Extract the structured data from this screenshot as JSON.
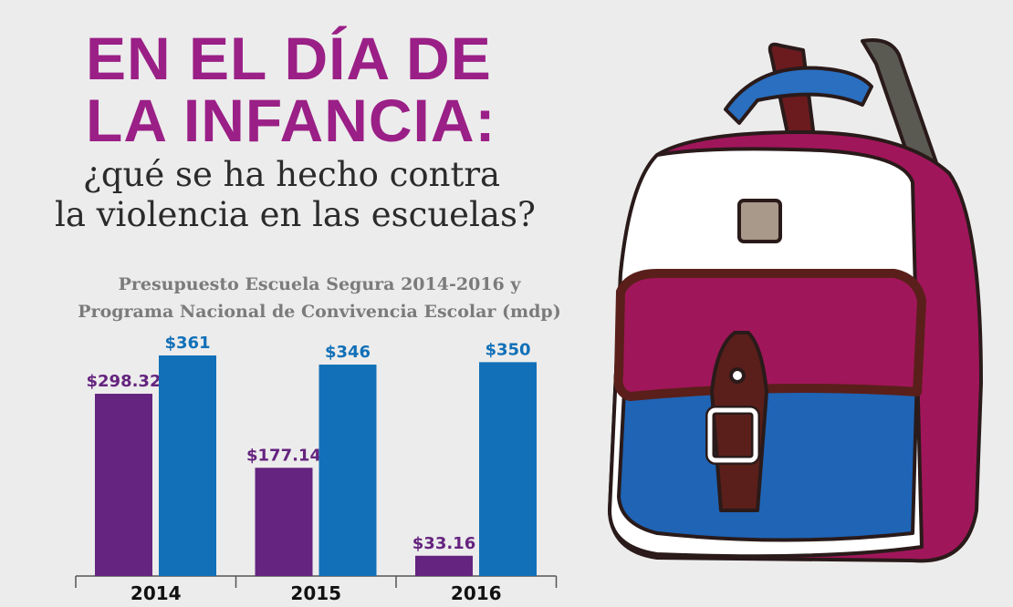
{
  "headline": {
    "line1": "EN EL DÍA DE",
    "line2": "LA INFANCIA:",
    "sub1": "¿qué se ha hecho contra",
    "sub2": "la violencia en las escuelas?"
  },
  "chart_data": {
    "type": "bar",
    "title_line1": "Presupuesto Escuela Segura 2014-2016 y",
    "title_line2": "Programa Nacional de Convivencia Escolar (mdp)",
    "categories": [
      "2014",
      "2015",
      "2016"
    ],
    "series": [
      {
        "values": [
          298.32,
          177.14,
          33.16
        ],
        "labels": [
          "$298.32",
          "$177.14",
          "$33.16"
        ],
        "color": "#65247f"
      },
      {
        "values": [
          361,
          346,
          350
        ],
        "labels": [
          "$361",
          "$346",
          "$350"
        ],
        "color": "#1170b8"
      }
    ],
    "ylim": [
      0,
      361
    ],
    "grid": false
  },
  "colors": {
    "title": "#9a1f86",
    "backpack_magenta": "#a0165a",
    "backpack_blue": "#1f64b5",
    "strap": "#5a1f1a"
  }
}
